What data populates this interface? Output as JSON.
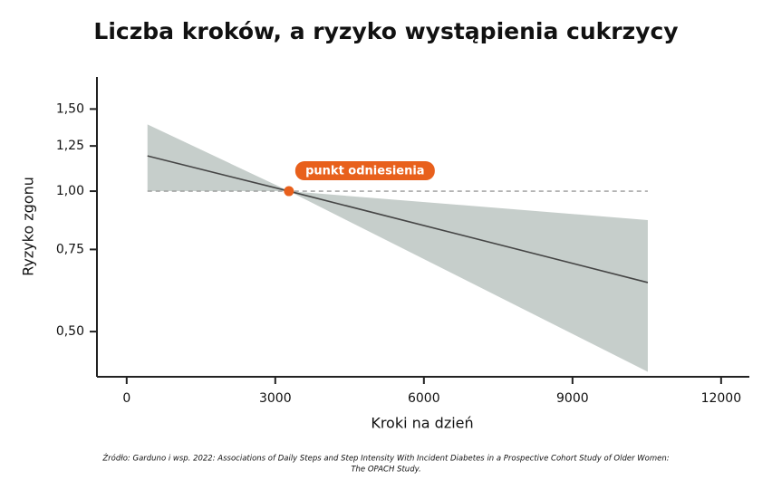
{
  "chart_data": {
    "type": "line",
    "title": "Liczba kroków, a ryzyko wystąpienia cukrzycy",
    "x_label": "Kroki na dzień",
    "y_label": "Ryzyko zgonu",
    "yscale": "log",
    "x": [
      420,
      3275,
      10520
    ],
    "series": [
      {
        "color": "#454545",
        "values": [
          1.19,
          1.0,
          0.637
        ]
      }
    ],
    "band": {
      "color": "#c6cecb",
      "upper": [
        1.39,
        1.0,
        0.867
      ],
      "lower": [
        1.0,
        1.0,
        0.41
      ]
    },
    "reference_line": {
      "value": 1.0,
      "color": "#9a9a9a",
      "style": "dashed"
    },
    "annotation": {
      "text": "punkt odniesienia",
      "x": 3275,
      "y": 1.0,
      "color": "#e8601c"
    },
    "xlim": [
      -600,
      12570
    ],
    "xticks": [
      0,
      3000,
      6000,
      9000,
      12000
    ],
    "ylim": [
      0.4,
      1.757
    ],
    "yticks": [
      {
        "value": 0.5,
        "label": "0,50"
      },
      {
        "value": 0.75,
        "label": "0,75"
      },
      {
        "value": 1.0,
        "label": "1,00"
      },
      {
        "value": 1.25,
        "label": "1,25"
      },
      {
        "value": 1.5,
        "label": "1,50"
      }
    ],
    "source": [
      "Źródło: Garduno i wsp. 2022: Associations of Daily Steps and Step Intensity With Incident Diabetes in a Prospective Cohort Study of Older Women:",
      "The OPACH Study."
    ]
  }
}
